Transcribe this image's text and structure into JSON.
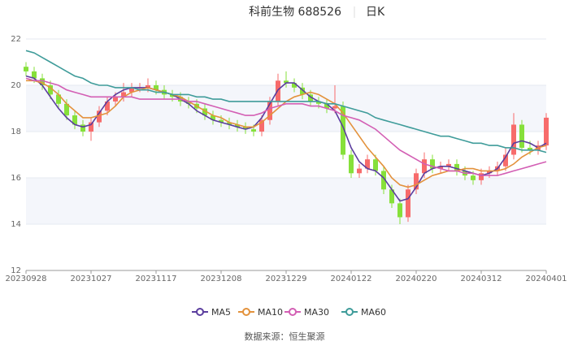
{
  "chart_data": {
    "type": "candlestick",
    "title": "科前生物 688526",
    "period": "日K",
    "source": "数据来源：恒生聚源",
    "categories": [
      "20230928",
      null,
      null,
      null,
      null,
      null,
      null,
      null,
      "20231027",
      null,
      null,
      null,
      null,
      null,
      null,
      null,
      "20231117",
      null,
      null,
      null,
      null,
      null,
      null,
      null,
      "20231208",
      null,
      null,
      null,
      null,
      null,
      null,
      null,
      "20231229",
      null,
      null,
      null,
      null,
      null,
      null,
      null,
      "20240122",
      null,
      null,
      null,
      null,
      null,
      null,
      null,
      "20240220",
      null,
      null,
      null,
      null,
      null,
      null,
      null,
      "20240312",
      null,
      null,
      null,
      null,
      null,
      null,
      null,
      "20240401"
    ],
    "open": [
      20.8,
      20.6,
      20.3,
      20.0,
      19.6,
      19.2,
      18.7,
      18.3,
      18.0,
      18.4,
      18.9,
      19.3,
      19.5,
      19.7,
      19.9,
      19.9,
      20.0,
      19.8,
      19.6,
      19.5,
      19.3,
      19.2,
      19.0,
      18.7,
      18.5,
      18.4,
      18.3,
      18.2,
      18.1,
      18.0,
      18.5,
      19.3,
      20.2,
      20.1,
      19.9,
      19.6,
      19.3,
      19.2,
      19.0,
      19.1,
      17.0,
      16.2,
      16.4,
      16.8,
      16.3,
      15.5,
      14.9,
      14.3,
      15.5,
      16.2,
      16.8,
      16.4,
      16.5,
      16.6,
      16.3,
      16.1,
      15.9,
      16.2,
      16.3,
      16.5,
      17.0,
      18.3,
      17.3,
      17.2,
      17.4
    ],
    "high": [
      21.0,
      20.8,
      20.5,
      20.2,
      19.8,
      19.4,
      18.9,
      18.5,
      18.6,
      19.1,
      19.5,
      19.7,
      20.1,
      20.1,
      20.1,
      20.3,
      20.2,
      20.0,
      19.8,
      19.7,
      19.5,
      19.4,
      19.2,
      18.9,
      18.7,
      18.6,
      18.5,
      18.4,
      18.3,
      18.7,
      19.5,
      20.5,
      20.6,
      20.3,
      20.1,
      19.8,
      19.5,
      19.4,
      20.0,
      19.3,
      17.2,
      16.6,
      17.0,
      17.0,
      16.5,
      15.7,
      15.1,
      15.7,
      16.4,
      17.1,
      17.0,
      16.7,
      16.8,
      16.8,
      16.5,
      16.3,
      16.4,
      16.5,
      16.7,
      17.3,
      18.8,
      18.5,
      17.6,
      17.6,
      18.8
    ],
    "low": [
      20.4,
      20.1,
      19.8,
      19.4,
      19.0,
      18.5,
      18.1,
      17.8,
      17.6,
      18.2,
      18.7,
      19.1,
      19.3,
      19.5,
      19.7,
      19.7,
      19.6,
      19.4,
      19.3,
      19.1,
      19.0,
      18.8,
      18.5,
      18.3,
      18.2,
      18.1,
      18.0,
      17.9,
      17.8,
      17.8,
      18.3,
      19.1,
      19.9,
      19.7,
      19.4,
      19.1,
      19.0,
      18.8,
      18.8,
      16.8,
      16.0,
      16.0,
      16.2,
      16.1,
      15.3,
      14.7,
      14.0,
      14.1,
      15.3,
      16.0,
      16.2,
      16.2,
      16.3,
      16.1,
      15.9,
      15.7,
      15.7,
      16.0,
      16.1,
      16.3,
      16.8,
      17.1,
      17.0,
      17.0,
      17.2
    ],
    "close": [
      20.6,
      20.3,
      20.0,
      19.6,
      19.2,
      18.7,
      18.3,
      18.0,
      18.4,
      18.9,
      19.3,
      19.5,
      19.7,
      19.9,
      19.9,
      20.0,
      19.8,
      19.6,
      19.5,
      19.3,
      19.2,
      19.0,
      18.7,
      18.5,
      18.4,
      18.3,
      18.2,
      18.1,
      18.0,
      18.5,
      19.3,
      20.2,
      20.1,
      19.9,
      19.6,
      19.3,
      19.2,
      19.0,
      19.1,
      17.0,
      16.2,
      16.4,
      16.8,
      16.3,
      15.5,
      14.9,
      14.3,
      15.5,
      16.2,
      16.8,
      16.4,
      16.5,
      16.6,
      16.3,
      16.1,
      15.9,
      16.2,
      16.3,
      16.5,
      17.0,
      18.3,
      17.3,
      17.2,
      17.4,
      18.6
    ],
    "up_color": "#f76b6b",
    "down_color": "#86e03a",
    "series": [
      {
        "name": "MA5",
        "color": "#5b3e9e",
        "values": [
          20.4,
          20.3,
          20.0,
          19.5,
          19.0,
          18.6,
          18.3,
          18.2,
          18.3,
          18.8,
          19.3,
          19.6,
          19.8,
          19.9,
          19.9,
          19.9,
          19.8,
          19.7,
          19.6,
          19.4,
          19.2,
          18.9,
          18.7,
          18.5,
          18.4,
          18.3,
          18.2,
          18.1,
          18.2,
          18.6,
          19.2,
          19.8,
          20.1,
          20.1,
          19.8,
          19.5,
          19.3,
          19.2,
          18.9,
          18.2,
          17.3,
          16.7,
          16.4,
          16.3,
          16.0,
          15.5,
          15.0,
          15.1,
          15.6,
          16.2,
          16.4,
          16.5,
          16.5,
          16.4,
          16.3,
          16.2,
          16.1,
          16.2,
          16.4,
          16.9,
          17.5,
          17.6,
          17.5,
          17.3,
          17.5
        ]
      },
      {
        "name": "MA10",
        "color": "#e3923c",
        "values": [
          20.2,
          20.2,
          20.1,
          19.9,
          19.6,
          19.2,
          18.9,
          18.6,
          18.6,
          18.7,
          18.8,
          19.1,
          19.5,
          19.7,
          19.8,
          19.9,
          19.8,
          19.7,
          19.6,
          19.5,
          19.3,
          19.1,
          18.9,
          18.7,
          18.6,
          18.4,
          18.3,
          18.2,
          18.2,
          18.4,
          18.7,
          19.0,
          19.3,
          19.5,
          19.6,
          19.7,
          19.6,
          19.4,
          19.2,
          18.8,
          18.3,
          17.8,
          17.3,
          16.9,
          16.5,
          16.0,
          15.7,
          15.6,
          15.7,
          15.9,
          16.1,
          16.2,
          16.3,
          16.3,
          16.4,
          16.4,
          16.3,
          16.3,
          16.3,
          16.4,
          16.6,
          16.9,
          17.1,
          17.3,
          17.4
        ]
      },
      {
        "name": "MA30",
        "color": "#d35fb4",
        "values": [
          20.3,
          20.2,
          20.2,
          20.1,
          20.0,
          19.8,
          19.7,
          19.6,
          19.5,
          19.5,
          19.5,
          19.5,
          19.5,
          19.5,
          19.4,
          19.4,
          19.4,
          19.4,
          19.4,
          19.4,
          19.3,
          19.3,
          19.2,
          19.1,
          19.0,
          18.9,
          18.8,
          18.7,
          18.7,
          18.8,
          19.0,
          19.1,
          19.2,
          19.2,
          19.2,
          19.1,
          19.1,
          19.0,
          18.9,
          18.7,
          18.6,
          18.5,
          18.3,
          18.1,
          17.8,
          17.5,
          17.2,
          17.0,
          16.8,
          16.6,
          16.5,
          16.4,
          16.3,
          16.3,
          16.2,
          16.2,
          16.1,
          16.1,
          16.1,
          16.2,
          16.3,
          16.4,
          16.5,
          16.6,
          16.7
        ]
      },
      {
        "name": "MA60",
        "color": "#3f9c9a",
        "values": [
          21.5,
          21.4,
          21.2,
          21.0,
          20.8,
          20.6,
          20.4,
          20.3,
          20.1,
          20.0,
          20.0,
          19.9,
          19.9,
          19.9,
          19.8,
          19.8,
          19.7,
          19.7,
          19.6,
          19.6,
          19.6,
          19.5,
          19.5,
          19.4,
          19.4,
          19.3,
          19.3,
          19.3,
          19.3,
          19.3,
          19.3,
          19.3,
          19.3,
          19.3,
          19.3,
          19.3,
          19.3,
          19.2,
          19.2,
          19.1,
          19.0,
          18.9,
          18.8,
          18.6,
          18.5,
          18.4,
          18.3,
          18.2,
          18.1,
          18.0,
          17.9,
          17.8,
          17.8,
          17.7,
          17.6,
          17.5,
          17.5,
          17.4,
          17.4,
          17.3,
          17.3,
          17.2,
          17.2,
          17.2,
          17.1
        ]
      }
    ],
    "ylim": [
      12,
      22
    ],
    "yticks": [
      12,
      14,
      16,
      18,
      20,
      22
    ],
    "grid": true
  }
}
